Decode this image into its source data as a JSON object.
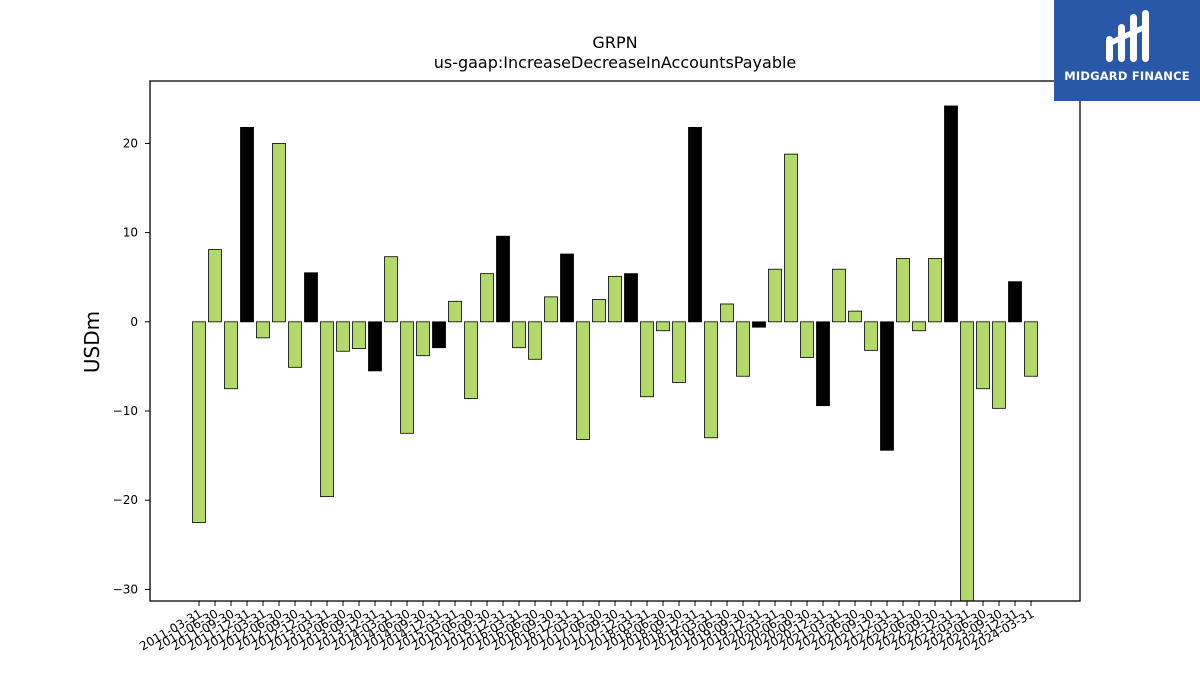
{
  "chart_data": {
    "type": "bar",
    "title": "GRPN",
    "subtitle": "us-gaap:IncreaseDecreaseInAccountsPayable",
    "xlabel": "",
    "ylabel": "USDm",
    "ylim": [
      -31.3,
      27.0
    ],
    "yticks": [
      -30,
      -20,
      -10,
      0,
      10,
      20
    ],
    "ytick_labels": [
      "−30",
      "−20",
      "−10",
      "0",
      "10",
      "20"
    ],
    "grid": false,
    "colors": {
      "quarterly": "#b0db6a",
      "annual": "#000000",
      "edge": "#000000"
    },
    "categories": [
      "2011-03-31",
      "2011-06-30",
      "2011-09-30",
      "2011-12-31",
      "2012-03-31",
      "2012-06-30",
      "2012-09-30",
      "2012-12-31",
      "2013-03-31",
      "2013-06-30",
      "2013-09-30",
      "2013-12-31",
      "2014-03-31",
      "2014-06-30",
      "2014-09-30",
      "2014-12-31",
      "2015-03-31",
      "2015-06-30",
      "2015-09-30",
      "2015-12-31",
      "2016-03-31",
      "2016-06-30",
      "2016-09-30",
      "2016-12-31",
      "2017-03-31",
      "2017-06-30",
      "2017-09-30",
      "2017-12-31",
      "2018-03-31",
      "2018-06-30",
      "2018-09-30",
      "2018-12-31",
      "2019-03-31",
      "2019-06-30",
      "2019-09-30",
      "2019-12-31",
      "2020-03-31",
      "2020-06-30",
      "2020-09-30",
      "2020-12-31",
      "2021-03-31",
      "2021-06-30",
      "2021-09-30",
      "2021-12-31",
      "2022-03-31",
      "2022-06-30",
      "2022-09-30",
      "2022-12-31",
      "2023-03-31",
      "2023-06-30",
      "2023-09-30",
      "2023-12-31",
      "2024-03-31"
    ],
    "values": [
      -22.5,
      8.1,
      -7.5,
      21.8,
      -1.8,
      20.0,
      -5.1,
      5.5,
      -19.6,
      -3.3,
      -3.0,
      -5.5,
      7.3,
      -12.5,
      -3.8,
      -2.9,
      2.3,
      -8.6,
      5.4,
      9.6,
      -2.9,
      -4.2,
      2.8,
      7.6,
      -13.2,
      2.5,
      5.1,
      5.4,
      -8.4,
      -1.0,
      -6.8,
      21.8,
      -13.0,
      2.0,
      -6.1,
      -0.6,
      5.9,
      18.8,
      -4.0,
      -9.4,
      5.9,
      1.2,
      -3.2,
      -14.4,
      7.1,
      -1.0,
      7.1,
      24.2,
      -31.3,
      -7.5,
      -9.7,
      4.5,
      -6.1
    ],
    "annual": [
      false,
      false,
      false,
      true,
      false,
      false,
      false,
      true,
      false,
      false,
      false,
      true,
      false,
      false,
      false,
      true,
      false,
      false,
      false,
      true,
      false,
      false,
      false,
      true,
      false,
      false,
      false,
      true,
      false,
      false,
      false,
      true,
      false,
      false,
      false,
      true,
      false,
      false,
      false,
      true,
      false,
      false,
      false,
      true,
      false,
      false,
      false,
      true,
      false,
      false,
      false,
      true,
      false
    ]
  },
  "logo": {
    "text": "MIDGARD FINANCE"
  }
}
